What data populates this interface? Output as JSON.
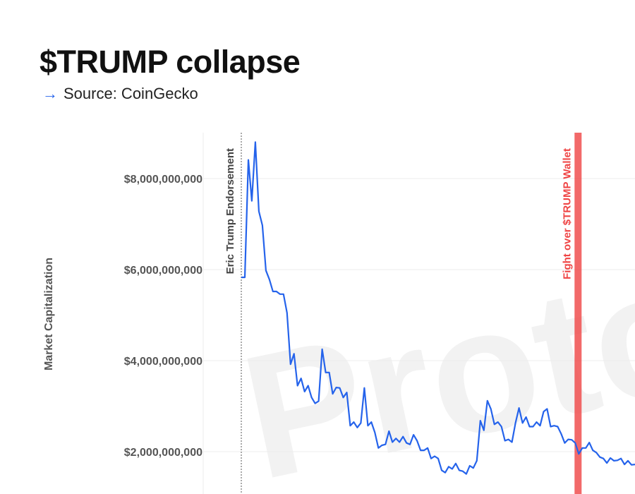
{
  "title": "$TRUMP collapse",
  "source": {
    "arrow_icon": "arrow-right-icon",
    "text": "Source: CoinGecko",
    "accent": "#2563eb"
  },
  "watermark": "Proto",
  "chart_data": {
    "type": "line",
    "title": "$TRUMP collapse",
    "ylabel": "Market Capitalization",
    "yticks": [
      2000000000,
      4000000000,
      6000000000,
      8000000000
    ],
    "ytick_labels": [
      "$2,000,000,000",
      "$4,000,000,000",
      "$6,000,000,000",
      "$8,000,000,000"
    ],
    "grid": true,
    "series_color": "#2563eb",
    "values_billions": [
      5.83,
      5.83,
      8.41,
      7.51,
      8.8,
      7.28,
      6.97,
      5.98,
      5.78,
      5.52,
      5.52,
      5.46,
      5.46,
      5.05,
      3.92,
      4.15,
      3.45,
      3.61,
      3.32,
      3.45,
      3.19,
      3.06,
      3.11,
      4.25,
      3.74,
      3.74,
      3.27,
      3.41,
      3.4,
      3.19,
      3.3,
      2.57,
      2.65,
      2.53,
      2.63,
      3.4,
      2.57,
      2.65,
      2.42,
      2.08,
      2.14,
      2.16,
      2.45,
      2.21,
      2.29,
      2.21,
      2.33,
      2.19,
      2.16,
      2.37,
      2.24,
      2.03,
      2.03,
      2.08,
      1.85,
      1.9,
      1.85,
      1.59,
      1.54,
      1.67,
      1.62,
      1.74,
      1.59,
      1.57,
      1.51,
      1.69,
      1.64,
      1.8,
      2.68,
      2.47,
      3.12,
      2.94,
      2.6,
      2.65,
      2.55,
      2.24,
      2.27,
      2.21,
      2.63,
      2.96,
      2.63,
      2.76,
      2.55,
      2.55,
      2.65,
      2.57,
      2.88,
      2.94,
      2.55,
      2.57,
      2.55,
      2.39,
      2.19,
      2.27,
      2.26,
      2.19,
      1.95,
      2.08,
      2.08,
      2.2,
      2.03,
      1.98,
      1.88,
      1.85,
      1.75,
      1.86,
      1.8,
      1.81,
      1.85,
      1.72,
      1.8,
      1.71,
      1.72
    ],
    "annotations": [
      {
        "label": "Eric Trump Endorsement",
        "style": "dotted",
        "color": "#555555",
        "at_index": 0
      },
      {
        "label": "Fight over $TRUMP Wallet",
        "style": "band",
        "color": "#ef4444",
        "at_index": 95
      }
    ]
  }
}
